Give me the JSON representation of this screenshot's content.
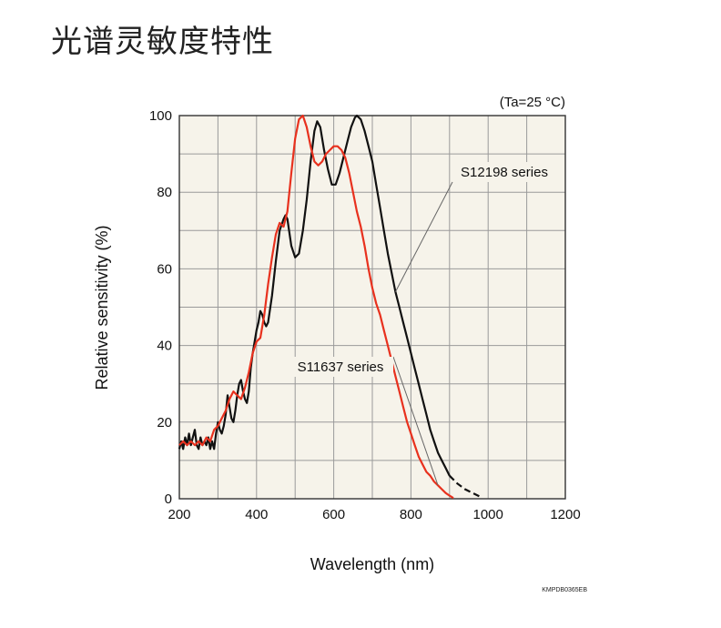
{
  "page": {
    "title": "光谱灵敏度特性"
  },
  "chart_data": {
    "type": "line",
    "condition": "(Ta=25 °C)",
    "xlabel": "Wavelength (nm)",
    "ylabel": "Relative sensitivity (%)",
    "xlim": [
      200,
      1200
    ],
    "ylim": [
      0,
      100
    ],
    "x_ticks": [
      200,
      400,
      600,
      800,
      1000,
      1200
    ],
    "y_ticks": [
      0,
      20,
      40,
      60,
      80,
      100
    ],
    "grid": true,
    "code": "KMPDB0365EB",
    "series": [
      {
        "name": "S12198 series",
        "color": "#111111",
        "points": [
          [
            200,
            13
          ],
          [
            205,
            15
          ],
          [
            210,
            13
          ],
          [
            215,
            16
          ],
          [
            220,
            14
          ],
          [
            225,
            17
          ],
          [
            230,
            14
          ],
          [
            235,
            16
          ],
          [
            240,
            18
          ],
          [
            245,
            14
          ],
          [
            250,
            13
          ],
          [
            255,
            16
          ],
          [
            260,
            14
          ],
          [
            265,
            15
          ],
          [
            270,
            14
          ],
          [
            275,
            16
          ],
          [
            280,
            13
          ],
          [
            285,
            15
          ],
          [
            290,
            13
          ],
          [
            295,
            17
          ],
          [
            300,
            20
          ],
          [
            305,
            18
          ],
          [
            310,
            17
          ],
          [
            315,
            19
          ],
          [
            320,
            22
          ],
          [
            325,
            27
          ],
          [
            330,
            24
          ],
          [
            335,
            21
          ],
          [
            340,
            20
          ],
          [
            345,
            23
          ],
          [
            350,
            27
          ],
          [
            355,
            30
          ],
          [
            360,
            31
          ],
          [
            365,
            28
          ],
          [
            370,
            26
          ],
          [
            375,
            25
          ],
          [
            380,
            28
          ],
          [
            385,
            34
          ],
          [
            390,
            38
          ],
          [
            395,
            41
          ],
          [
            400,
            44
          ],
          [
            405,
            46
          ],
          [
            410,
            49
          ],
          [
            415,
            48
          ],
          [
            420,
            46
          ],
          [
            425,
            45
          ],
          [
            430,
            46
          ],
          [
            440,
            53
          ],
          [
            450,
            62
          ],
          [
            460,
            70
          ],
          [
            470,
            73
          ],
          [
            475,
            74
          ],
          [
            480,
            73
          ],
          [
            490,
            66
          ],
          [
            500,
            63
          ],
          [
            510,
            64
          ],
          [
            520,
            70
          ],
          [
            530,
            78
          ],
          [
            540,
            88
          ],
          [
            550,
            96
          ],
          [
            557,
            98.5
          ],
          [
            565,
            97
          ],
          [
            575,
            91
          ],
          [
            585,
            86
          ],
          [
            595,
            82
          ],
          [
            605,
            82
          ],
          [
            615,
            85
          ],
          [
            625,
            89
          ],
          [
            635,
            93
          ],
          [
            645,
            97
          ],
          [
            655,
            99.5
          ],
          [
            660,
            100
          ],
          [
            670,
            99
          ],
          [
            680,
            96
          ],
          [
            690,
            92
          ],
          [
            700,
            88
          ],
          [
            710,
            82
          ],
          [
            720,
            76
          ],
          [
            730,
            70
          ],
          [
            740,
            64
          ],
          [
            750,
            59
          ],
          [
            760,
            54
          ],
          [
            770,
            50
          ],
          [
            780,
            46
          ],
          [
            790,
            42
          ],
          [
            800,
            38
          ],
          [
            810,
            34
          ],
          [
            820,
            30
          ],
          [
            830,
            26
          ],
          [
            840,
            22
          ],
          [
            850,
            18
          ],
          [
            860,
            15
          ],
          [
            870,
            12
          ],
          [
            880,
            10
          ],
          [
            890,
            8
          ],
          [
            900,
            6
          ],
          [
            920,
            4
          ],
          [
            940,
            2.5
          ],
          [
            960,
            1.5
          ],
          [
            980,
            0.5
          ]
        ]
      },
      {
        "name": "S11637 series",
        "color": "#e8311e",
        "points": [
          [
            200,
            14
          ],
          [
            210,
            15
          ],
          [
            220,
            14
          ],
          [
            230,
            15
          ],
          [
            240,
            14
          ],
          [
            250,
            15
          ],
          [
            260,
            14
          ],
          [
            270,
            16
          ],
          [
            280,
            15
          ],
          [
            290,
            18
          ],
          [
            300,
            19
          ],
          [
            310,
            21
          ],
          [
            320,
            23
          ],
          [
            330,
            26
          ],
          [
            340,
            28
          ],
          [
            350,
            27
          ],
          [
            360,
            26
          ],
          [
            370,
            29
          ],
          [
            380,
            33
          ],
          [
            390,
            38
          ],
          [
            400,
            41
          ],
          [
            410,
            42
          ],
          [
            420,
            48
          ],
          [
            430,
            56
          ],
          [
            440,
            63
          ],
          [
            450,
            69
          ],
          [
            460,
            72
          ],
          [
            470,
            71
          ],
          [
            480,
            75
          ],
          [
            490,
            85
          ],
          [
            500,
            94
          ],
          [
            510,
            99
          ],
          [
            520,
            100
          ],
          [
            530,
            97
          ],
          [
            540,
            92
          ],
          [
            550,
            88
          ],
          [
            560,
            87
          ],
          [
            570,
            88
          ],
          [
            580,
            90
          ],
          [
            590,
            91
          ],
          [
            600,
            92
          ],
          [
            610,
            92
          ],
          [
            620,
            91
          ],
          [
            630,
            89
          ],
          [
            640,
            85
          ],
          [
            650,
            80
          ],
          [
            660,
            75
          ],
          [
            670,
            71
          ],
          [
            680,
            66
          ],
          [
            690,
            60
          ],
          [
            700,
            55
          ],
          [
            710,
            51
          ],
          [
            720,
            48
          ],
          [
            730,
            44
          ],
          [
            740,
            40
          ],
          [
            750,
            36
          ],
          [
            760,
            32
          ],
          [
            770,
            28
          ],
          [
            780,
            24
          ],
          [
            790,
            20
          ],
          [
            800,
            17
          ],
          [
            810,
            14
          ],
          [
            820,
            11
          ],
          [
            830,
            9
          ],
          [
            840,
            7
          ],
          [
            850,
            6
          ],
          [
            860,
            4.5
          ],
          [
            870,
            3.5
          ],
          [
            880,
            2.5
          ],
          [
            890,
            1.5
          ],
          [
            900,
            0.8
          ],
          [
            910,
            0.2
          ]
        ]
      }
    ],
    "annotations": [
      {
        "text": "S12198 series",
        "series": 0,
        "at_x": 760
      },
      {
        "text": "S11637 series",
        "series": 1,
        "at_x": 870
      }
    ]
  }
}
